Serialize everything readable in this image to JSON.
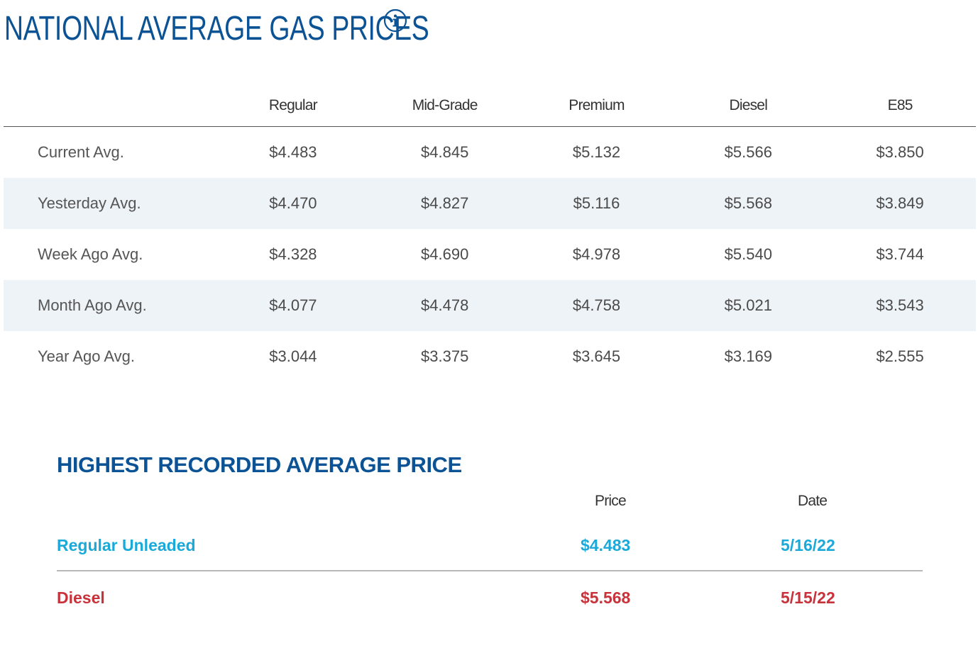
{
  "title": "NATIONAL AVERAGE GAS PRICES",
  "info_icon": "info-icon",
  "colors": {
    "title": "#0b5394",
    "row_alt": "#eef3f8",
    "regular": "#1aa9d9",
    "diesel": "#c8323a"
  },
  "table": {
    "columns": [
      "Regular",
      "Mid-Grade",
      "Premium",
      "Diesel",
      "E85"
    ],
    "rows": [
      {
        "label": "Current Avg.",
        "values": [
          "$4.483",
          "$4.845",
          "$5.132",
          "$5.566",
          "$3.850"
        ]
      },
      {
        "label": "Yesterday Avg.",
        "values": [
          "$4.470",
          "$4.827",
          "$5.116",
          "$5.568",
          "$3.849"
        ]
      },
      {
        "label": "Week Ago Avg.",
        "values": [
          "$4.328",
          "$4.690",
          "$4.978",
          "$5.540",
          "$3.744"
        ]
      },
      {
        "label": "Month Ago Avg.",
        "values": [
          "$4.077",
          "$4.478",
          "$4.758",
          "$5.021",
          "$3.543"
        ]
      },
      {
        "label": "Year Ago Avg.",
        "values": [
          "$3.044",
          "$3.375",
          "$3.645",
          "$3.169",
          "$2.555"
        ]
      }
    ]
  },
  "highest": {
    "title": "HIGHEST RECORDED AVERAGE PRICE",
    "price_header": "Price",
    "date_header": "Date",
    "records": [
      {
        "label": "Regular Unleaded",
        "price": "$4.483",
        "date": "5/16/22"
      },
      {
        "label": "Diesel",
        "price": "$5.568",
        "date": "5/15/22"
      }
    ]
  }
}
